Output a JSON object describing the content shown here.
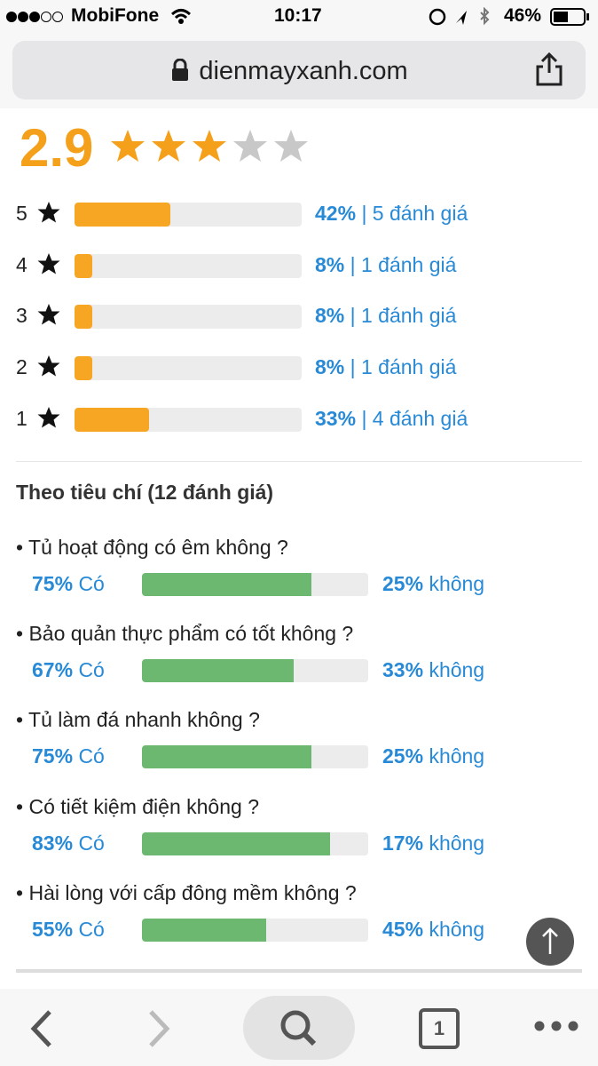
{
  "status_bar": {
    "carrier": "MobiFone",
    "time": "10:17",
    "battery": "46%"
  },
  "address_bar": {
    "url": "dienmayxanh.com"
  },
  "rating": {
    "score": "2.9",
    "rows": [
      {
        "star": "5",
        "percent": 42,
        "percent_label": "42%",
        "count": "| 5 đánh giá"
      },
      {
        "star": "4",
        "percent": 8,
        "percent_label": "8%",
        "count": "| 1 đánh giá"
      },
      {
        "star": "3",
        "percent": 8,
        "percent_label": "8%",
        "count": "| 1 đánh giá"
      },
      {
        "star": "2",
        "percent": 8,
        "percent_label": "8%",
        "count": "| 1 đánh giá"
      },
      {
        "star": "1",
        "percent": 33,
        "percent_label": "33%",
        "count": "| 4 đánh giá"
      }
    ]
  },
  "criteria": {
    "title": "Theo tiêu chí (12 đánh giá)",
    "items": [
      {
        "question": "Tủ hoạt động có êm không ?",
        "yes": 75,
        "yes_label": "75%",
        "yes_text": "Có",
        "no": 25,
        "no_label": "25%",
        "no_text": "không"
      },
      {
        "question": "Bảo quản thực phẩm có tốt không ?",
        "yes": 67,
        "yes_label": "67%",
        "yes_text": "Có",
        "no": 33,
        "no_label": "33%",
        "no_text": "không"
      },
      {
        "question": "Tủ làm đá nhanh không ?",
        "yes": 75,
        "yes_label": "75%",
        "yes_text": "Có",
        "no": 25,
        "no_label": "25%",
        "no_text": "không"
      },
      {
        "question": "Có tiết kiệm điện không ?",
        "yes": 83,
        "yes_label": "83%",
        "yes_text": "Có",
        "no": 17,
        "no_label": "17%",
        "no_text": "không"
      },
      {
        "question": "Hài lòng với cấp đông mềm không ?",
        "yes": 55,
        "yes_label": "55%",
        "yes_text": "Có",
        "no": 45,
        "no_label": "45%",
        "no_text": "không"
      }
    ]
  },
  "toolbar": {
    "tabs": "1"
  }
}
